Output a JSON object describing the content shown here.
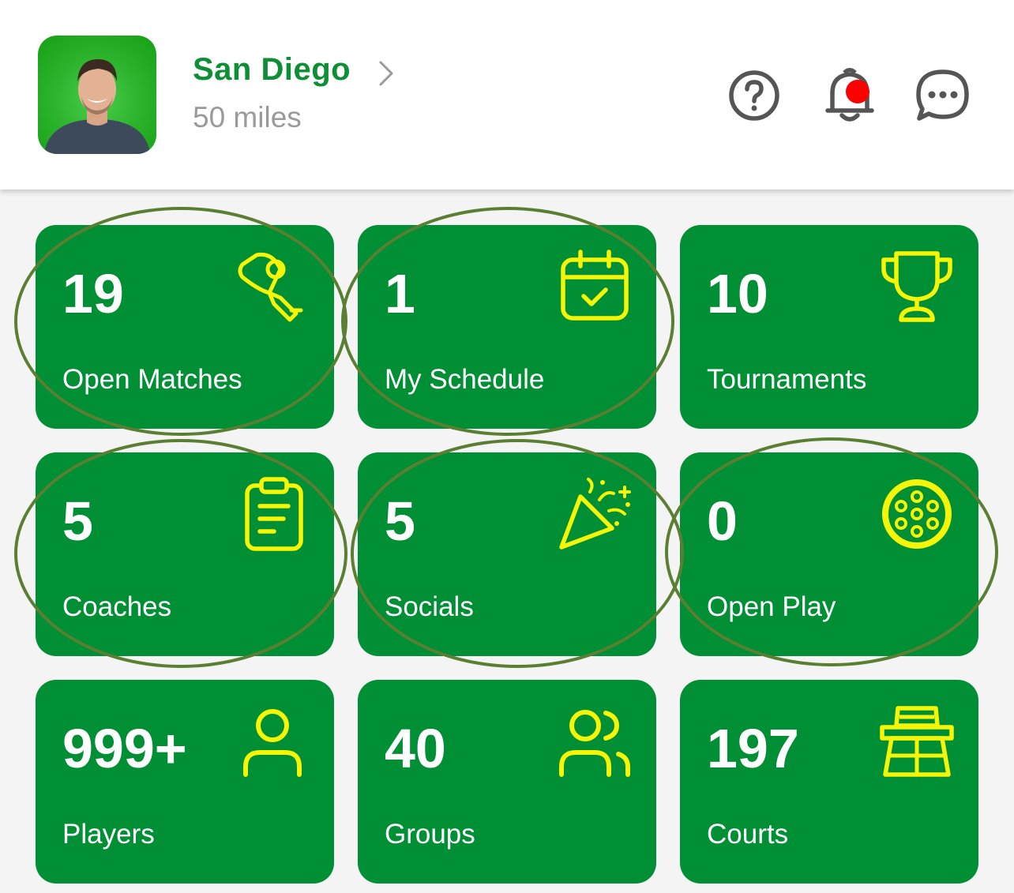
{
  "header": {
    "location_city": "San Diego",
    "location_distance": "50 miles",
    "icons": {
      "help": "help-circle-icon",
      "notifications": "bell-icon",
      "messages": "chat-bubble-icon"
    },
    "notification_dot_color": "#ff0000"
  },
  "colors": {
    "brand_green": "#018f35",
    "title_green": "#0e8f35",
    "icon_yellow": "#f5f50a",
    "annotation_ring": "#5a7f32"
  },
  "tiles": [
    {
      "count": "19",
      "label": "Open Matches",
      "icon": "pickleball-paddle-icon"
    },
    {
      "count": "1",
      "label": "My Schedule",
      "icon": "calendar-check-icon"
    },
    {
      "count": "10",
      "label": "Tournaments",
      "icon": "trophy-icon"
    },
    {
      "count": "5",
      "label": "Coaches",
      "icon": "clipboard-icon"
    },
    {
      "count": "5",
      "label": "Socials",
      "icon": "party-popper-icon"
    },
    {
      "count": "0",
      "label": "Open Play",
      "icon": "pickleball-icon"
    },
    {
      "count": "999+",
      "label": "Players",
      "icon": "user-icon"
    },
    {
      "count": "40",
      "label": "Groups",
      "icon": "users-icon"
    },
    {
      "count": "197",
      "label": "Courts",
      "icon": "court-icon"
    }
  ]
}
